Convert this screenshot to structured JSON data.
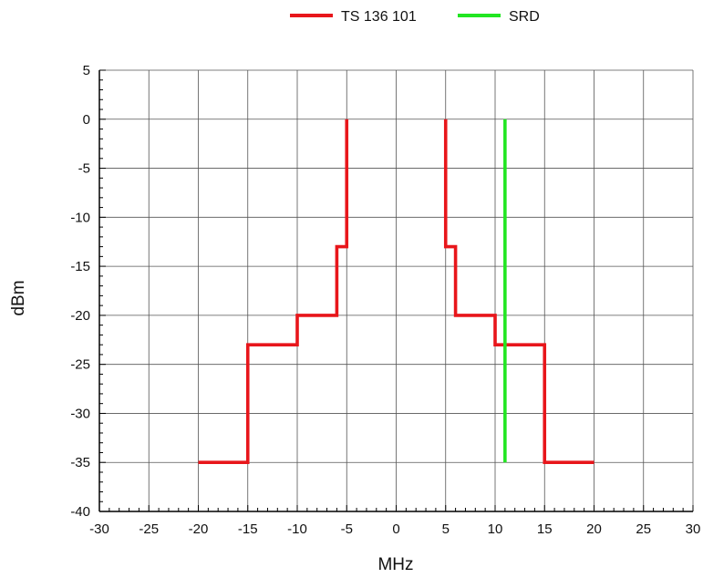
{
  "chart_data": {
    "type": "line",
    "xlabel": "MHz",
    "ylabel": "dBm",
    "xlim": [
      -30,
      30
    ],
    "ylim": [
      -40,
      5
    ],
    "xticks": [
      -30,
      -25,
      -20,
      -15,
      -10,
      -5,
      0,
      5,
      10,
      15,
      20,
      25,
      30
    ],
    "yticks": [
      5,
      0,
      -5,
      -10,
      -15,
      -20,
      -25,
      -30,
      -35,
      -40
    ],
    "grid": true,
    "legend_position": "top",
    "series": [
      {
        "name": "TS 136 101",
        "color": "#e8161b",
        "segments": [
          {
            "x": [
              -20,
              -15,
              -15,
              -10,
              -10,
              -6,
              -6,
              -5,
              -5
            ],
            "y": [
              -35,
              -35,
              -23,
              -23,
              -20,
              -20,
              -13,
              -13,
              0
            ]
          },
          {
            "x": [
              5,
              5,
              6,
              6,
              10,
              10,
              15,
              15,
              20
            ],
            "y": [
              0,
              -13,
              -13,
              -20,
              -20,
              -23,
              -23,
              -35,
              -35
            ]
          }
        ]
      },
      {
        "name": "SRD",
        "color": "#22e622",
        "segments": [
          {
            "x": [
              11,
              11
            ],
            "y": [
              0,
              -35
            ]
          }
        ]
      }
    ]
  }
}
